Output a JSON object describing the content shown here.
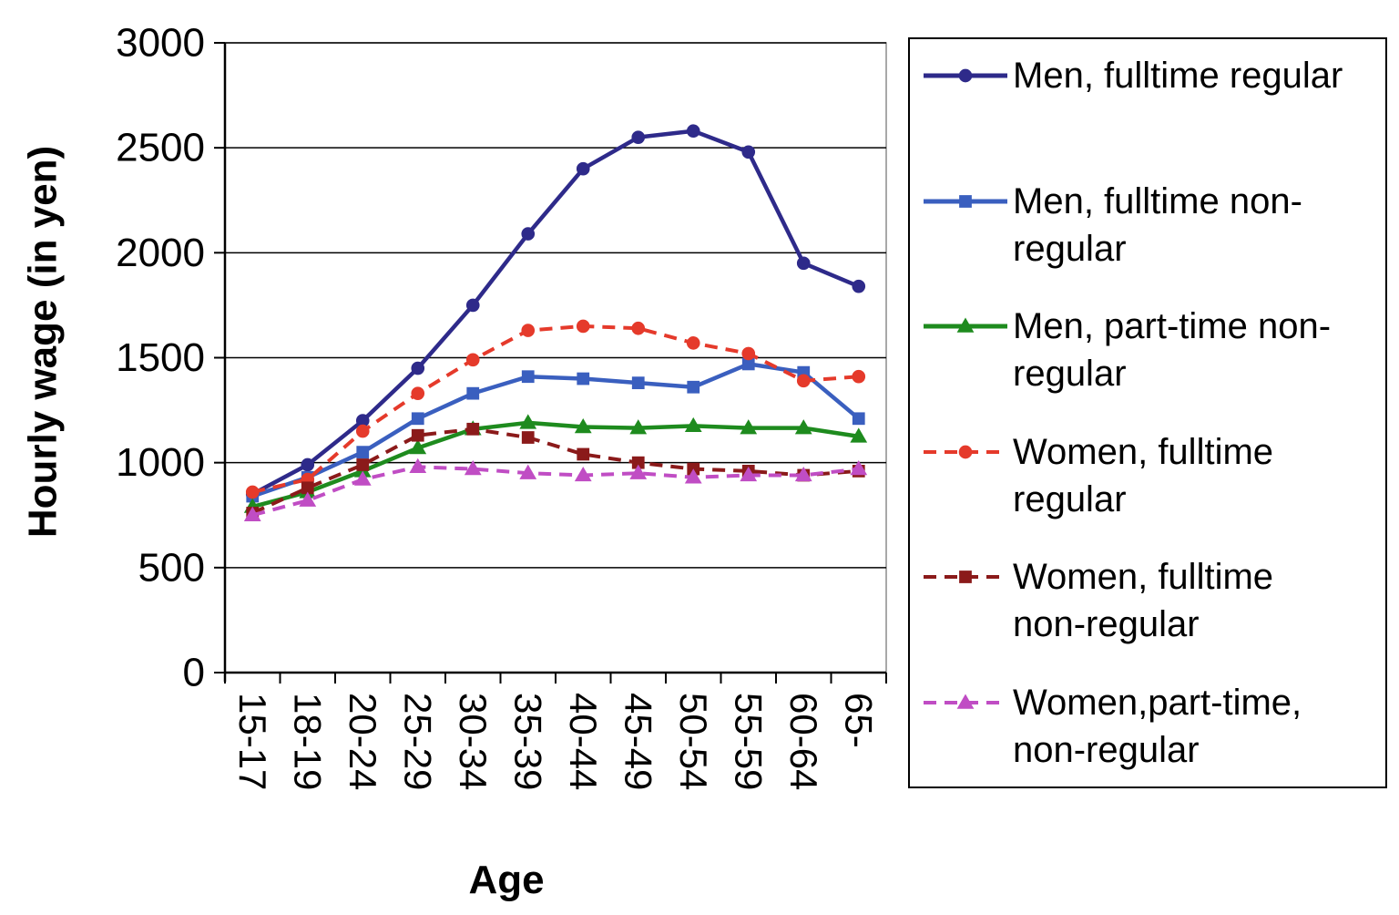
{
  "chart_data": {
    "type": "line",
    "xlabel": "Age",
    "ylabel": "Hourly wage (in yen)",
    "ylim": [
      0,
      3000
    ],
    "yticks": [
      0,
      500,
      1000,
      1500,
      2000,
      2500,
      3000
    ],
    "grid": true,
    "legend_position": "right",
    "categories": [
      "15-17",
      "18-19",
      "20-24",
      "25-29",
      "30-34",
      "35-39",
      "40-44",
      "45-49",
      "50-54",
      "55-59",
      "60-64",
      "65-"
    ],
    "series": [
      {
        "name": "Men, fulltime regular",
        "legend_lines": [
          "Men, fulltime regular"
        ],
        "color": "#2e2a8a",
        "marker": "circle",
        "dashed": false,
        "values": [
          850,
          990,
          1200,
          1450,
          1750,
          2090,
          2400,
          2550,
          2580,
          2480,
          1950,
          1840
        ]
      },
      {
        "name": "Men, fulltime non-regular",
        "legend_lines": [
          "Men, fulltime non-",
          "regular"
        ],
        "color": "#3a5fbf",
        "marker": "square",
        "dashed": false,
        "values": [
          840,
          930,
          1050,
          1210,
          1330,
          1410,
          1400,
          1380,
          1360,
          1470,
          1430,
          1210
        ]
      },
      {
        "name": "Men, part-time non-regular",
        "legend_lines": [
          "Men, part-time non-",
          "regular"
        ],
        "color": "#1e8b1e",
        "marker": "triangle",
        "dashed": false,
        "values": [
          790,
          860,
          960,
          1070,
          1160,
          1190,
          1170,
          1165,
          1175,
          1165,
          1165,
          1125
        ]
      },
      {
        "name": "Women, fulltime regular",
        "legend_lines": [
          "Women, fulltime",
          "regular"
        ],
        "color": "#e53a2b",
        "marker": "circle",
        "dashed": true,
        "values": [
          860,
          920,
          1150,
          1330,
          1490,
          1630,
          1650,
          1640,
          1570,
          1520,
          1390,
          1410
        ]
      },
      {
        "name": "Women, fulltime non-regular",
        "legend_lines": [
          "Women, fulltime",
          "non-regular"
        ],
        "color": "#8b1a1a",
        "marker": "square",
        "dashed": true,
        "values": [
          760,
          880,
          990,
          1130,
          1160,
          1120,
          1040,
          1000,
          970,
          960,
          940,
          960
        ]
      },
      {
        "name": "Women,part-time, non-regular",
        "legend_lines": [
          "Women,part-time,",
          "non-regular"
        ],
        "color": "#c04dc4",
        "marker": "triangle",
        "dashed": true,
        "values": [
          750,
          820,
          920,
          980,
          970,
          950,
          940,
          950,
          930,
          940,
          940,
          970
        ]
      }
    ]
  }
}
